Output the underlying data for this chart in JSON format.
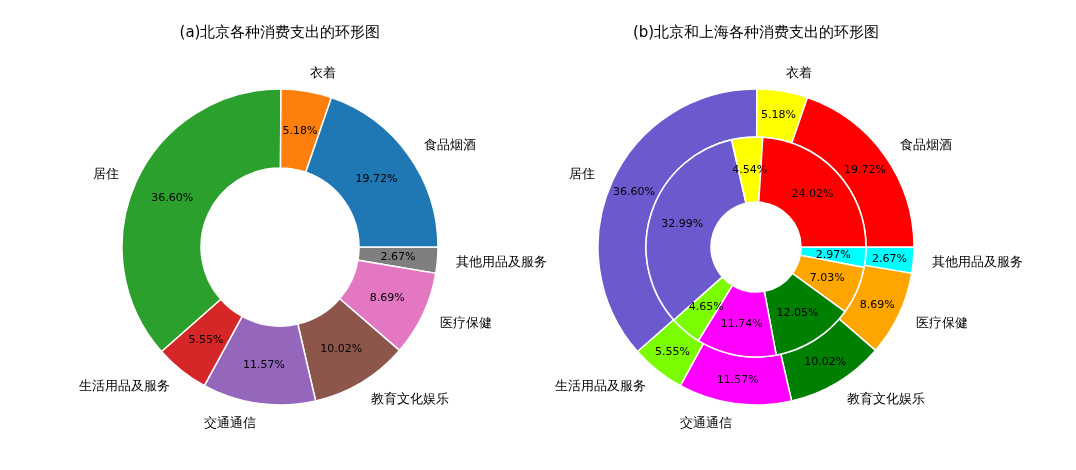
{
  "chart_data": [
    {
      "type": "donut",
      "title": "(a)北京各种消费支出的环形图",
      "categories": [
        "食品烟酒",
        "衣着",
        "居住",
        "生活用品及服务",
        "交通通信",
        "教育文化娱乐",
        "医疗保健",
        "其他用品及服务"
      ],
      "values": [
        19.72,
        5.18,
        36.6,
        5.55,
        11.57,
        10.02,
        8.69,
        2.67
      ],
      "value_labels": [
        "19.72%",
        "5.18%",
        "36.60%",
        "5.55%",
        "11.57%",
        "10.02%",
        "8.69%",
        "2.67%"
      ],
      "colors": [
        "#1f77b4",
        "#ff7f0e",
        "#2ca02c",
        "#d62728",
        "#9467bd",
        "#8c564b",
        "#e377c2",
        "#7f7f7f"
      ]
    },
    {
      "type": "donut",
      "title": "(b)北京和上海各种消费支出的环形图",
      "categories": [
        "食品烟酒",
        "衣着",
        "居住",
        "生活用品及服务",
        "交通通信",
        "教育文化娱乐",
        "医疗保健",
        "其他用品及服务"
      ],
      "series": [
        {
          "values": [
            19.72,
            5.18,
            36.6,
            5.55,
            11.57,
            10.02,
            8.69,
            2.67
          ],
          "value_labels": [
            "19.72%",
            "5.18%",
            "36.60%",
            "5.55%",
            "11.57%",
            "10.02%",
            "8.69%",
            "2.67%"
          ],
          "colors": [
            "#ff0000",
            "#ffff00",
            "#6a5acd",
            "#7cfc00",
            "#ff00ff",
            "#008000",
            "#ffa500",
            "#00ffff"
          ]
        },
        {
          "values": [
            24.02,
            4.54,
            32.99,
            4.65,
            11.74,
            12.05,
            7.03,
            2.97
          ],
          "value_labels": [
            "24.02%",
            "4.54%",
            "32.99%",
            "4.65%",
            "11.74%",
            "12.05%",
            "7.03%",
            "2.97%"
          ],
          "colors": [
            "#ff0000",
            "#ffff00",
            "#6a5acd",
            "#7cfc00",
            "#ff00ff",
            "#008000",
            "#ffa500",
            "#00ffff"
          ]
        }
      ]
    }
  ]
}
